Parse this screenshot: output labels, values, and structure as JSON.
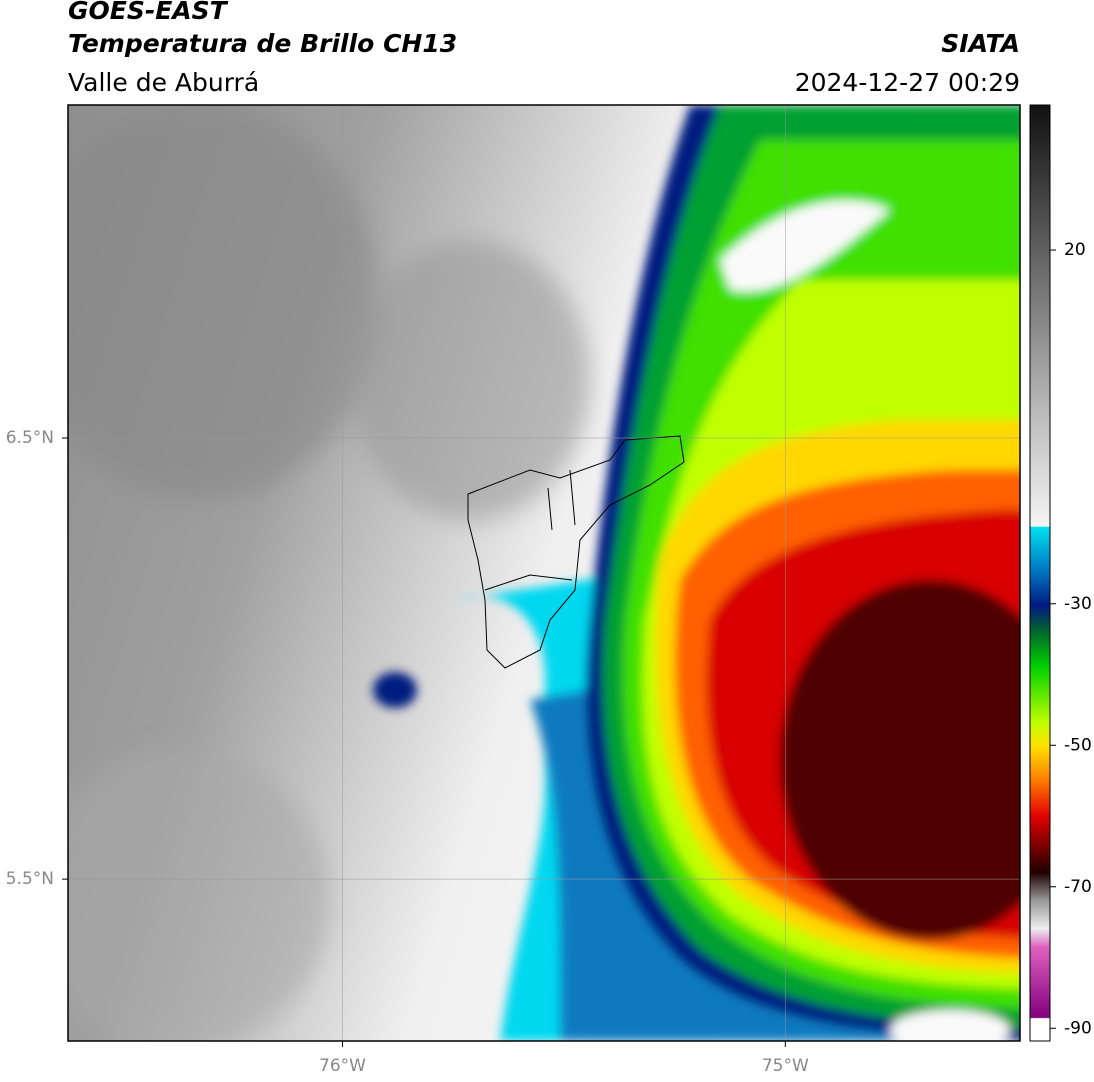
{
  "header": {
    "title": "GOES-EAST",
    "subtitle": "Temperatura de Brillo CH13",
    "region": "Valle de Aburrá",
    "source": "SIATA",
    "datetime": "2024-12-27 00:29"
  },
  "map": {
    "lonlim": [
      -76.62,
      -74.47
    ],
    "latlim": [
      5.133,
      7.255
    ],
    "xticks": [
      {
        "value": -76,
        "label": "76°W"
      },
      {
        "value": -75,
        "label": "75°W"
      }
    ],
    "yticks": [
      {
        "value": 6.5,
        "label": "6.5°N"
      },
      {
        "value": 5.5,
        "label": "5.5°N"
      }
    ],
    "grid": true
  },
  "colorbar": {
    "lim": [
      -91.8,
      40.5
    ],
    "ticks": [
      20,
      -30,
      -50,
      -70,
      -90
    ]
  }
}
